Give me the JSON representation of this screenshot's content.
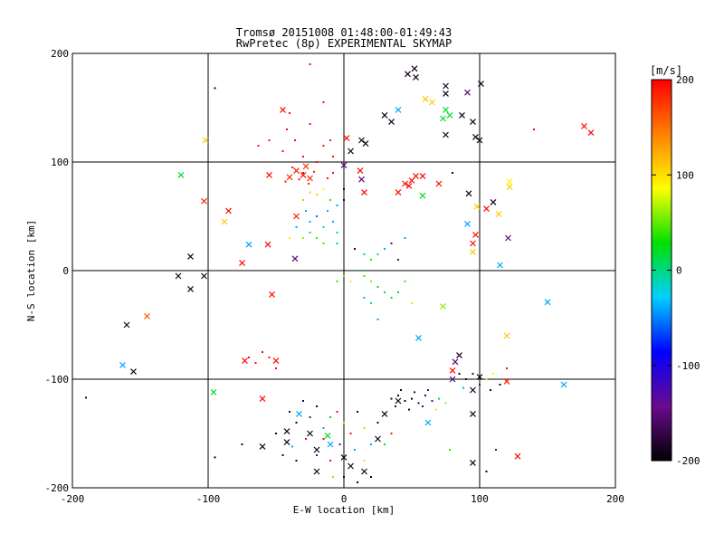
{
  "chart_data": {
    "type": "scatter",
    "title": "Tromsø 20151008 01:48:00-01:49:43",
    "subtitle": "RwPretec (8p) EXPERIMENTAL SKYMAP",
    "xlabel": "E-W location [km]",
    "ylabel": "N-S location [km]",
    "xlim": [
      -200,
      200
    ],
    "ylim": [
      -200,
      200
    ],
    "x_ticks": [
      -200,
      -100,
      0,
      100,
      200
    ],
    "y_ticks": [
      -200,
      -100,
      0,
      100,
      200
    ],
    "x_tick_labels": [
      "-200",
      "-100",
      "0",
      "100",
      "200"
    ],
    "y_tick_labels": [
      "-200",
      "-100",
      "0",
      "100",
      "200"
    ],
    "grid": true,
    "colorbar": {
      "label": "[m/s]",
      "range": [
        -200,
        200
      ],
      "ticks": [
        200,
        100,
        0,
        -100,
        -200
      ],
      "tick_labels": [
        "200",
        "100",
        "0",
        "-100",
        "-200"
      ],
      "colormap": [
        "#000000",
        "#6a0a8f",
        "#0000ff",
        "#00d0ff",
        "#00e000",
        "#ffff00",
        "#ff8000",
        "#ff0000"
      ]
    },
    "points_x_marker": [
      {
        "x": -30,
        "y": 88,
        "v": 195
      },
      {
        "x": -35,
        "y": 92,
        "v": 190
      },
      {
        "x": -25,
        "y": 85,
        "v": 185
      },
      {
        "x": -40,
        "y": 86,
        "v": 180
      },
      {
        "x": -28,
        "y": 96,
        "v": 175
      },
      {
        "x": -45,
        "y": 148,
        "v": 195
      },
      {
        "x": -55,
        "y": 88,
        "v": 195
      },
      {
        "x": -85,
        "y": 55,
        "v": 195
      },
      {
        "x": -103,
        "y": 64,
        "v": 180
      },
      {
        "x": -102,
        "y": 120,
        "v": 110
      },
      {
        "x": -120,
        "y": 88,
        "v": 20
      },
      {
        "x": -88,
        "y": 45,
        "v": 110
      },
      {
        "x": -70,
        "y": 24,
        "v": -40
      },
      {
        "x": -56,
        "y": 24,
        "v": 195
      },
      {
        "x": -35,
        "y": 50,
        "v": 190
      },
      {
        "x": -75,
        "y": 7,
        "v": 195
      },
      {
        "x": -36,
        "y": 11,
        "v": -150
      },
      {
        "x": -53,
        "y": -22,
        "v": 195
      },
      {
        "x": -73,
        "y": -83,
        "v": 195
      },
      {
        "x": -60,
        "y": -118,
        "v": 195
      },
      {
        "x": -96,
        "y": -112,
        "v": 20
      },
      {
        "x": -122,
        "y": -5,
        "v": -190
      },
      {
        "x": -113,
        "y": -17,
        "v": -190
      },
      {
        "x": -113,
        "y": 13,
        "v": -190
      },
      {
        "x": -103,
        "y": -5,
        "v": -190
      },
      {
        "x": -145,
        "y": -42,
        "v": 160
      },
      {
        "x": -160,
        "y": -50,
        "v": -190
      },
      {
        "x": -163,
        "y": -87,
        "v": -40
      },
      {
        "x": -155,
        "y": -93,
        "v": -190
      },
      {
        "x": -50,
        "y": -83,
        "v": 195
      },
      {
        "x": -60,
        "y": -162,
        "v": -190
      },
      {
        "x": -42,
        "y": -148,
        "v": -190
      },
      {
        "x": -42,
        "y": -158,
        "v": -190
      },
      {
        "x": -33,
        "y": -132,
        "v": -40
      },
      {
        "x": -25,
        "y": -150,
        "v": -190
      },
      {
        "x": -20,
        "y": -165,
        "v": -190
      },
      {
        "x": -10,
        "y": -160,
        "v": -40
      },
      {
        "x": -20,
        "y": -185,
        "v": -190
      },
      {
        "x": -12,
        "y": -152,
        "v": 20
      },
      {
        "x": 0,
        "y": -172,
        "v": -190
      },
      {
        "x": 5,
        "y": -180,
        "v": -190
      },
      {
        "x": 15,
        "y": -185,
        "v": -190
      },
      {
        "x": 25,
        "y": -155,
        "v": -190
      },
      {
        "x": 30,
        "y": -132,
        "v": -190
      },
      {
        "x": 40,
        "y": -120,
        "v": -190
      },
      {
        "x": 62,
        "y": -140,
        "v": -40
      },
      {
        "x": 80,
        "y": -92,
        "v": 195
      },
      {
        "x": 80,
        "y": -100,
        "v": -150
      },
      {
        "x": 82,
        "y": -84,
        "v": -150
      },
      {
        "x": 85,
        "y": -78,
        "v": -190
      },
      {
        "x": 55,
        "y": -62,
        "v": -40
      },
      {
        "x": 73,
        "y": -33,
        "v": 60
      },
      {
        "x": 95,
        "y": -110,
        "v": -190
      },
      {
        "x": 100,
        "y": -98,
        "v": -190
      },
      {
        "x": 95,
        "y": -132,
        "v": -190
      },
      {
        "x": 95,
        "y": -177,
        "v": -190
      },
      {
        "x": 120,
        "y": -60,
        "v": 110
      },
      {
        "x": 120,
        "y": -102,
        "v": 190
      },
      {
        "x": 128,
        "y": -171,
        "v": 195
      },
      {
        "x": 150,
        "y": -29,
        "v": -40
      },
      {
        "x": 162,
        "y": -105,
        "v": -40
      },
      {
        "x": 115,
        "y": 5,
        "v": -40
      },
      {
        "x": 95,
        "y": 25,
        "v": 195
      },
      {
        "x": 95,
        "y": 17,
        "v": 110
      },
      {
        "x": 97,
        "y": 33,
        "v": 195
      },
      {
        "x": 91,
        "y": 43,
        "v": -40
      },
      {
        "x": 98,
        "y": 59,
        "v": 110
      },
      {
        "x": 92,
        "y": 71,
        "v": -190
      },
      {
        "x": 110,
        "y": 63,
        "v": -190
      },
      {
        "x": 114,
        "y": 52,
        "v": 110
      },
      {
        "x": 121,
        "y": 30,
        "v": -150
      },
      {
        "x": 122,
        "y": 82,
        "v": 90
      },
      {
        "x": 122,
        "y": 77,
        "v": 110
      },
      {
        "x": 105,
        "y": 57,
        "v": 195
      },
      {
        "x": 101,
        "y": 172,
        "v": -190
      },
      {
        "x": 91,
        "y": 164,
        "v": -150
      },
      {
        "x": 75,
        "y": 170,
        "v": -190
      },
      {
        "x": 75,
        "y": 163,
        "v": -190
      },
      {
        "x": 53,
        "y": 178,
        "v": -190
      },
      {
        "x": 47,
        "y": 181,
        "v": -190
      },
      {
        "x": 52,
        "y": 186,
        "v": -190
      },
      {
        "x": 60,
        "y": 158,
        "v": 110
      },
      {
        "x": 65,
        "y": 155,
        "v": 110
      },
      {
        "x": 75,
        "y": 148,
        "v": 20
      },
      {
        "x": 78,
        "y": 143,
        "v": 20
      },
      {
        "x": 73,
        "y": 140,
        "v": 20
      },
      {
        "x": 87,
        "y": 143,
        "v": -190
      },
      {
        "x": 95,
        "y": 137,
        "v": -190
      },
      {
        "x": 97,
        "y": 123,
        "v": -190
      },
      {
        "x": 100,
        "y": 120,
        "v": -190
      },
      {
        "x": 75,
        "y": 125,
        "v": -190
      },
      {
        "x": 40,
        "y": 148,
        "v": -40
      },
      {
        "x": 35,
        "y": 137,
        "v": -190
      },
      {
        "x": 30,
        "y": 143,
        "v": -190
      },
      {
        "x": 13,
        "y": 120,
        "v": -190
      },
      {
        "x": 16,
        "y": 117,
        "v": -190
      },
      {
        "x": 5,
        "y": 110,
        "v": -190
      },
      {
        "x": 2,
        "y": 122,
        "v": 195
      },
      {
        "x": 0,
        "y": 97,
        "v": -150
      },
      {
        "x": 12,
        "y": 92,
        "v": 195
      },
      {
        "x": 15,
        "y": 72,
        "v": 195
      },
      {
        "x": 40,
        "y": 72,
        "v": 195
      },
      {
        "x": 45,
        "y": 80,
        "v": 195
      },
      {
        "x": 50,
        "y": 83,
        "v": 195
      },
      {
        "x": 53,
        "y": 87,
        "v": 195
      },
      {
        "x": 58,
        "y": 87,
        "v": 195
      },
      {
        "x": 58,
        "y": 69,
        "v": 20
      },
      {
        "x": 48,
        "y": 78,
        "v": 195
      },
      {
        "x": 70,
        "y": 80,
        "v": 195
      },
      {
        "x": 182,
        "y": 127,
        "v": 195
      },
      {
        "x": 177,
        "y": 133,
        "v": 195
      },
      {
        "x": 13,
        "y": 84,
        "v": -150
      }
    ],
    "points_dot_marker": [
      {
        "x": -30,
        "y": 90,
        "v": 200
      },
      {
        "x": -33,
        "y": 84,
        "v": 195
      },
      {
        "x": -22,
        "y": 91,
        "v": 190
      },
      {
        "x": -38,
        "y": 95,
        "v": 185
      },
      {
        "x": -26,
        "y": 80,
        "v": 180
      },
      {
        "x": -20,
        "y": 100,
        "v": 195
      },
      {
        "x": -43,
        "y": 82,
        "v": 195
      },
      {
        "x": -36,
        "y": 120,
        "v": 195
      },
      {
        "x": -42,
        "y": 130,
        "v": 195
      },
      {
        "x": -25,
        "y": 135,
        "v": 195
      },
      {
        "x": -15,
        "y": 115,
        "v": 195
      },
      {
        "x": -10,
        "y": 120,
        "v": 190
      },
      {
        "x": -8,
        "y": 105,
        "v": 195
      },
      {
        "x": -30,
        "y": 105,
        "v": 195
      },
      {
        "x": -45,
        "y": 110,
        "v": 195
      },
      {
        "x": -40,
        "y": 145,
        "v": 195
      },
      {
        "x": -25,
        "y": 190,
        "v": 195
      },
      {
        "x": -15,
        "y": 155,
        "v": 195
      },
      {
        "x": -55,
        "y": 120,
        "v": 195
      },
      {
        "x": -63,
        "y": 115,
        "v": 195
      },
      {
        "x": -20,
        "y": 70,
        "v": 110
      },
      {
        "x": -15,
        "y": 75,
        "v": 90
      },
      {
        "x": -25,
        "y": 72,
        "v": 110
      },
      {
        "x": -30,
        "y": 65,
        "v": 60
      },
      {
        "x": -10,
        "y": 65,
        "v": 40
      },
      {
        "x": -5,
        "y": 60,
        "v": -40
      },
      {
        "x": -12,
        "y": 55,
        "v": -40
      },
      {
        "x": -20,
        "y": 50,
        "v": -60
      },
      {
        "x": -28,
        "y": 55,
        "v": -40
      },
      {
        "x": -25,
        "y": 45,
        "v": -40
      },
      {
        "x": -15,
        "y": 40,
        "v": -20
      },
      {
        "x": -35,
        "y": 40,
        "v": -40
      },
      {
        "x": -8,
        "y": 45,
        "v": -40
      },
      {
        "x": -5,
        "y": 35,
        "v": 20
      },
      {
        "x": -20,
        "y": 30,
        "v": 40
      },
      {
        "x": -30,
        "y": 30,
        "v": 60
      },
      {
        "x": -15,
        "y": 25,
        "v": 40
      },
      {
        "x": -25,
        "y": 35,
        "v": 0
      },
      {
        "x": -5,
        "y": 25,
        "v": 20
      },
      {
        "x": -40,
        "y": 30,
        "v": 100
      },
      {
        "x": -12,
        "y": 85,
        "v": 195
      },
      {
        "x": -8,
        "y": 90,
        "v": 195
      },
      {
        "x": 0,
        "y": 75,
        "v": -190
      },
      {
        "x": 0,
        "y": 65,
        "v": -190
      },
      {
        "x": 8,
        "y": 20,
        "v": -190
      },
      {
        "x": 15,
        "y": 15,
        "v": 20
      },
      {
        "x": 20,
        "y": 10,
        "v": 40
      },
      {
        "x": 25,
        "y": 15,
        "v": 0
      },
      {
        "x": 30,
        "y": 20,
        "v": -40
      },
      {
        "x": 35,
        "y": 25,
        "v": -150
      },
      {
        "x": 10,
        "y": 0,
        "v": 20
      },
      {
        "x": 15,
        "y": -5,
        "v": 40
      },
      {
        "x": 20,
        "y": -10,
        "v": 60
      },
      {
        "x": 25,
        "y": -15,
        "v": 20
      },
      {
        "x": 30,
        "y": -20,
        "v": 0
      },
      {
        "x": 35,
        "y": -25,
        "v": 20
      },
      {
        "x": 15,
        "y": -25,
        "v": -40
      },
      {
        "x": 20,
        "y": -30,
        "v": -20
      },
      {
        "x": 5,
        "y": -10,
        "v": 80
      },
      {
        "x": 0,
        "y": -5,
        "v": 60
      },
      {
        "x": -5,
        "y": -10,
        "v": 40
      },
      {
        "x": 25,
        "y": -45,
        "v": -40
      },
      {
        "x": 40,
        "y": -20,
        "v": 20
      },
      {
        "x": 45,
        "y": -10,
        "v": 40
      },
      {
        "x": 50,
        "y": -30,
        "v": 100
      },
      {
        "x": 40,
        "y": 10,
        "v": -150
      },
      {
        "x": 45,
        "y": 30,
        "v": -40
      },
      {
        "x": -60,
        "y": -75,
        "v": 195
      },
      {
        "x": -65,
        "y": -85,
        "v": 195
      },
      {
        "x": -55,
        "y": -80,
        "v": 195
      },
      {
        "x": -70,
        "y": -80,
        "v": 195
      },
      {
        "x": -50,
        "y": -90,
        "v": 195
      },
      {
        "x": -190,
        "y": -117,
        "v": -190
      },
      {
        "x": -95,
        "y": 168,
        "v": -190
      },
      {
        "x": 40,
        "y": -115,
        "v": -190
      },
      {
        "x": 45,
        "y": -120,
        "v": -190
      },
      {
        "x": 50,
        "y": -118,
        "v": -190
      },
      {
        "x": 55,
        "y": -122,
        "v": -170
      },
      {
        "x": 60,
        "y": -115,
        "v": -170
      },
      {
        "x": 48,
        "y": -128,
        "v": -180
      },
      {
        "x": 52,
        "y": -112,
        "v": -180
      },
      {
        "x": 58,
        "y": -125,
        "v": -160
      },
      {
        "x": 65,
        "y": -120,
        "v": -150
      },
      {
        "x": 70,
        "y": -118,
        "v": 20
      },
      {
        "x": 75,
        "y": -122,
        "v": 60
      },
      {
        "x": 68,
        "y": -128,
        "v": 100
      },
      {
        "x": 42,
        "y": -110,
        "v": -190
      },
      {
        "x": 35,
        "y": -118,
        "v": -190
      },
      {
        "x": 38,
        "y": -125,
        "v": -170
      },
      {
        "x": 62,
        "y": -110,
        "v": -150
      },
      {
        "x": 90,
        "y": -100,
        "v": -190
      },
      {
        "x": 95,
        "y": -95,
        "v": -170
      },
      {
        "x": 100,
        "y": -105,
        "v": -150
      },
      {
        "x": 105,
        "y": -100,
        "v": 100
      },
      {
        "x": 110,
        "y": -95,
        "v": 80
      },
      {
        "x": 88,
        "y": -108,
        "v": -40
      },
      {
        "x": 85,
        "y": -95,
        "v": -190
      },
      {
        "x": 108,
        "y": -110,
        "v": -190
      },
      {
        "x": 115,
        "y": -105,
        "v": -190
      },
      {
        "x": -40,
        "y": -130,
        "v": -190
      },
      {
        "x": -35,
        "y": -140,
        "v": -190
      },
      {
        "x": -30,
        "y": -120,
        "v": -190
      },
      {
        "x": -25,
        "y": -135,
        "v": -150
      },
      {
        "x": -20,
        "y": -125,
        "v": -190
      },
      {
        "x": -15,
        "y": -145,
        "v": -40
      },
      {
        "x": -10,
        "y": -135,
        "v": 20
      },
      {
        "x": -5,
        "y": -130,
        "v": 195
      },
      {
        "x": 0,
        "y": -140,
        "v": 100
      },
      {
        "x": 5,
        "y": -150,
        "v": 195
      },
      {
        "x": 10,
        "y": -130,
        "v": -190
      },
      {
        "x": 15,
        "y": -145,
        "v": 60
      },
      {
        "x": 20,
        "y": -160,
        "v": -40
      },
      {
        "x": 25,
        "y": -140,
        "v": -190
      },
      {
        "x": -45,
        "y": -170,
        "v": -190
      },
      {
        "x": -35,
        "y": -175,
        "v": -190
      },
      {
        "x": -50,
        "y": -150,
        "v": -190
      },
      {
        "x": -20,
        "y": -170,
        "v": -150
      },
      {
        "x": -10,
        "y": -175,
        "v": 195
      },
      {
        "x": 0,
        "y": -190,
        "v": -190
      },
      {
        "x": 10,
        "y": -195,
        "v": -190
      },
      {
        "x": 15,
        "y": -175,
        "v": 100
      },
      {
        "x": 20,
        "y": -190,
        "v": -190
      },
      {
        "x": -8,
        "y": -190,
        "v": 60
      },
      {
        "x": -15,
        "y": -155,
        "v": 195
      },
      {
        "x": -28,
        "y": -155,
        "v": 195
      },
      {
        "x": -38,
        "y": -162,
        "v": -40
      },
      {
        "x": -3,
        "y": -160,
        "v": -150
      },
      {
        "x": 8,
        "y": -165,
        "v": -40
      },
      {
        "x": -95,
        "y": -172,
        "v": -190
      },
      {
        "x": -75,
        "y": -160,
        "v": -190
      },
      {
        "x": 140,
        "y": 130,
        "v": 195
      },
      {
        "x": 80,
        "y": 90,
        "v": -190
      },
      {
        "x": 120,
        "y": -90,
        "v": 195
      },
      {
        "x": 105,
        "y": -185,
        "v": -190
      },
      {
        "x": 112,
        "y": -165,
        "v": -150
      },
      {
        "x": 78,
        "y": -165,
        "v": 40
      },
      {
        "x": 30,
        "y": -160,
        "v": 20
      },
      {
        "x": 35,
        "y": -150,
        "v": 195
      }
    ]
  }
}
